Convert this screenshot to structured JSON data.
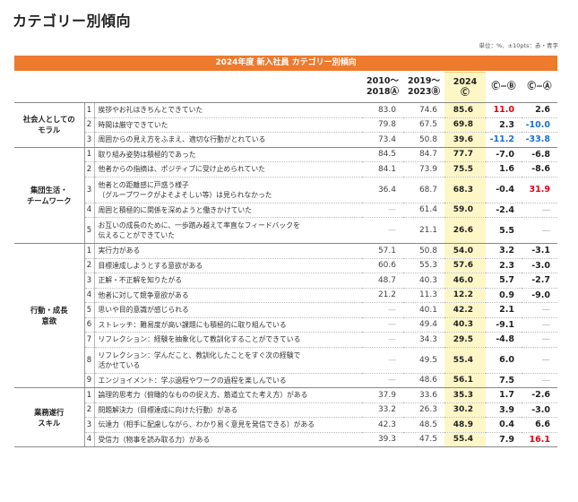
{
  "page_title": "カテゴリー別傾向",
  "unit_note": "単位：%、±10pts：赤・青字",
  "banner": "2024年度 新入社員 カテゴリー別傾向",
  "header": {
    "col1_line1": "2010～",
    "col1_line2": "2018Ⓐ",
    "col2_line1": "2019～",
    "col2_line2": "2023Ⓑ",
    "col3_line1": "2024",
    "col3_line2": "Ⓒ",
    "col4": "Ⓒ−Ⓑ",
    "col5": "Ⓒ−Ⓐ"
  },
  "colors": {
    "banner": "#ee7a2e",
    "highlight": "#fdf6c7",
    "positive": "#e60012",
    "negative": "#1a6fd0"
  },
  "categories": [
    {
      "name_line1": "社会人としての",
      "name_line2": "モラル",
      "rows": [
        {
          "no": "1",
          "item": "挨拶やお礼はきちんとできていた",
          "a": "83.0",
          "b": "74.6",
          "c": "85.6",
          "cb": "11.0",
          "ca": "2.6"
        },
        {
          "no": "2",
          "item": "時間は厳守できていた",
          "a": "79.8",
          "b": "67.5",
          "c": "69.8",
          "cb": "2.3",
          "ca": "-10.0"
        },
        {
          "no": "3",
          "item": "周囲からの見え方をふまえ、適切な行動がとれている",
          "a": "73.4",
          "b": "50.8",
          "c": "39.6",
          "cb": "-11.2",
          "ca": "-33.8"
        }
      ]
    },
    {
      "name_line1": "集団生活・",
      "name_line2": "チームワーク",
      "rows": [
        {
          "no": "1",
          "item": "取り組み姿勢は積極的であった",
          "a": "84.5",
          "b": "84.7",
          "c": "77.7",
          "cb": "-7.0",
          "ca": "-6.8"
        },
        {
          "no": "2",
          "item": "他者からの指摘は、ポジティブに受け止められていた",
          "a": "84.1",
          "b": "73.9",
          "c": "75.5",
          "cb": "1.6",
          "ca": "-8.6"
        },
        {
          "no": "3",
          "item": "他者との距離感に戸惑う様子",
          "item2": "（グループワークがよそよそしい等）は見られなかった",
          "a": "36.4",
          "b": "68.7",
          "c": "68.3",
          "cb": "-0.4",
          "ca": "31.9"
        },
        {
          "no": "4",
          "item": "周囲と積極的に関係を深めようと働きかけていた",
          "a": "—",
          "b": "61.4",
          "c": "59.0",
          "cb": "-2.4",
          "ca": "—"
        },
        {
          "no": "5",
          "item": "お互いの成長のために、一歩踏み越えて率直なフィードバックを",
          "item2": "伝えることができていた",
          "a": "—",
          "b": "21.1",
          "c": "26.6",
          "cb": "5.5",
          "ca": "—"
        }
      ]
    },
    {
      "name_line1": "行動・成長",
      "name_line2": "意欲",
      "rows": [
        {
          "no": "1",
          "item": "実行力がある",
          "a": "57.1",
          "b": "50.8",
          "c": "54.0",
          "cb": "3.2",
          "ca": "-3.1"
        },
        {
          "no": "2",
          "item": "目標達成しようとする意欲がある",
          "a": "60.6",
          "b": "55.3",
          "c": "57.6",
          "cb": "2.3",
          "ca": "-3.0"
        },
        {
          "no": "3",
          "item": "正解・不正解を知りたがる",
          "a": "48.7",
          "b": "40.3",
          "c": "46.0",
          "cb": "5.7",
          "ca": "-2.7"
        },
        {
          "no": "4",
          "item": "他者に対して競争意欲がある",
          "a": "21.2",
          "b": "11.3",
          "c": "12.2",
          "cb": "0.9",
          "ca": "-9.0"
        },
        {
          "no": "5",
          "item": "思いや目的意識が感じられる",
          "a": "—",
          "b": "40.1",
          "c": "42.2",
          "cb": "2.1",
          "ca": "—"
        },
        {
          "no": "6",
          "item": "ストレッチ：難易度が高い課題にも積極的に取り組んでいる",
          "a": "—",
          "b": "49.4",
          "c": "40.3",
          "cb": "-9.1",
          "ca": "—"
        },
        {
          "no": "7",
          "item": "リフレクション：経験を抽象化して教訓化することができている",
          "a": "—",
          "b": "34.3",
          "c": "29.5",
          "cb": "-4.8",
          "ca": "—"
        },
        {
          "no": "8",
          "item": "リフレクション：学んだこと、教訓化したことをすぐ次の経験で",
          "item2": "活かせている",
          "a": "—",
          "b": "49.5",
          "c": "55.4",
          "cb": "6.0",
          "ca": "—"
        },
        {
          "no": "9",
          "item": "エンジョイメント：学ぶ過程やワークの過程を楽しんでいる",
          "a": "—",
          "b": "48.6",
          "c": "56.1",
          "cb": "7.5",
          "ca": "—"
        }
      ]
    },
    {
      "name_line1": "業務遂行",
      "name_line2": "スキル",
      "rows": [
        {
          "no": "1",
          "item": "論理的思考力（俯瞰的なものの捉え方、筋道立てた考え方）がある",
          "a": "37.9",
          "b": "33.6",
          "c": "35.3",
          "cb": "1.7",
          "ca": "-2.6"
        },
        {
          "no": "2",
          "item": "問題解決力（目標達成に向けた行動）がある",
          "a": "33.2",
          "b": "26.3",
          "c": "30.2",
          "cb": "3.9",
          "ca": "-3.0"
        },
        {
          "no": "3",
          "item": "伝達力（相手に配慮しながら、わかり易く意見を発信できる）がある",
          "a": "42.3",
          "b": "48.5",
          "c": "48.9",
          "cb": "0.4",
          "ca": "6.6"
        },
        {
          "no": "4",
          "item": "受信力（物事を読み取る力）がある",
          "a": "39.3",
          "b": "47.5",
          "c": "55.4",
          "cb": "7.9",
          "ca": "16.1"
        }
      ]
    }
  ]
}
